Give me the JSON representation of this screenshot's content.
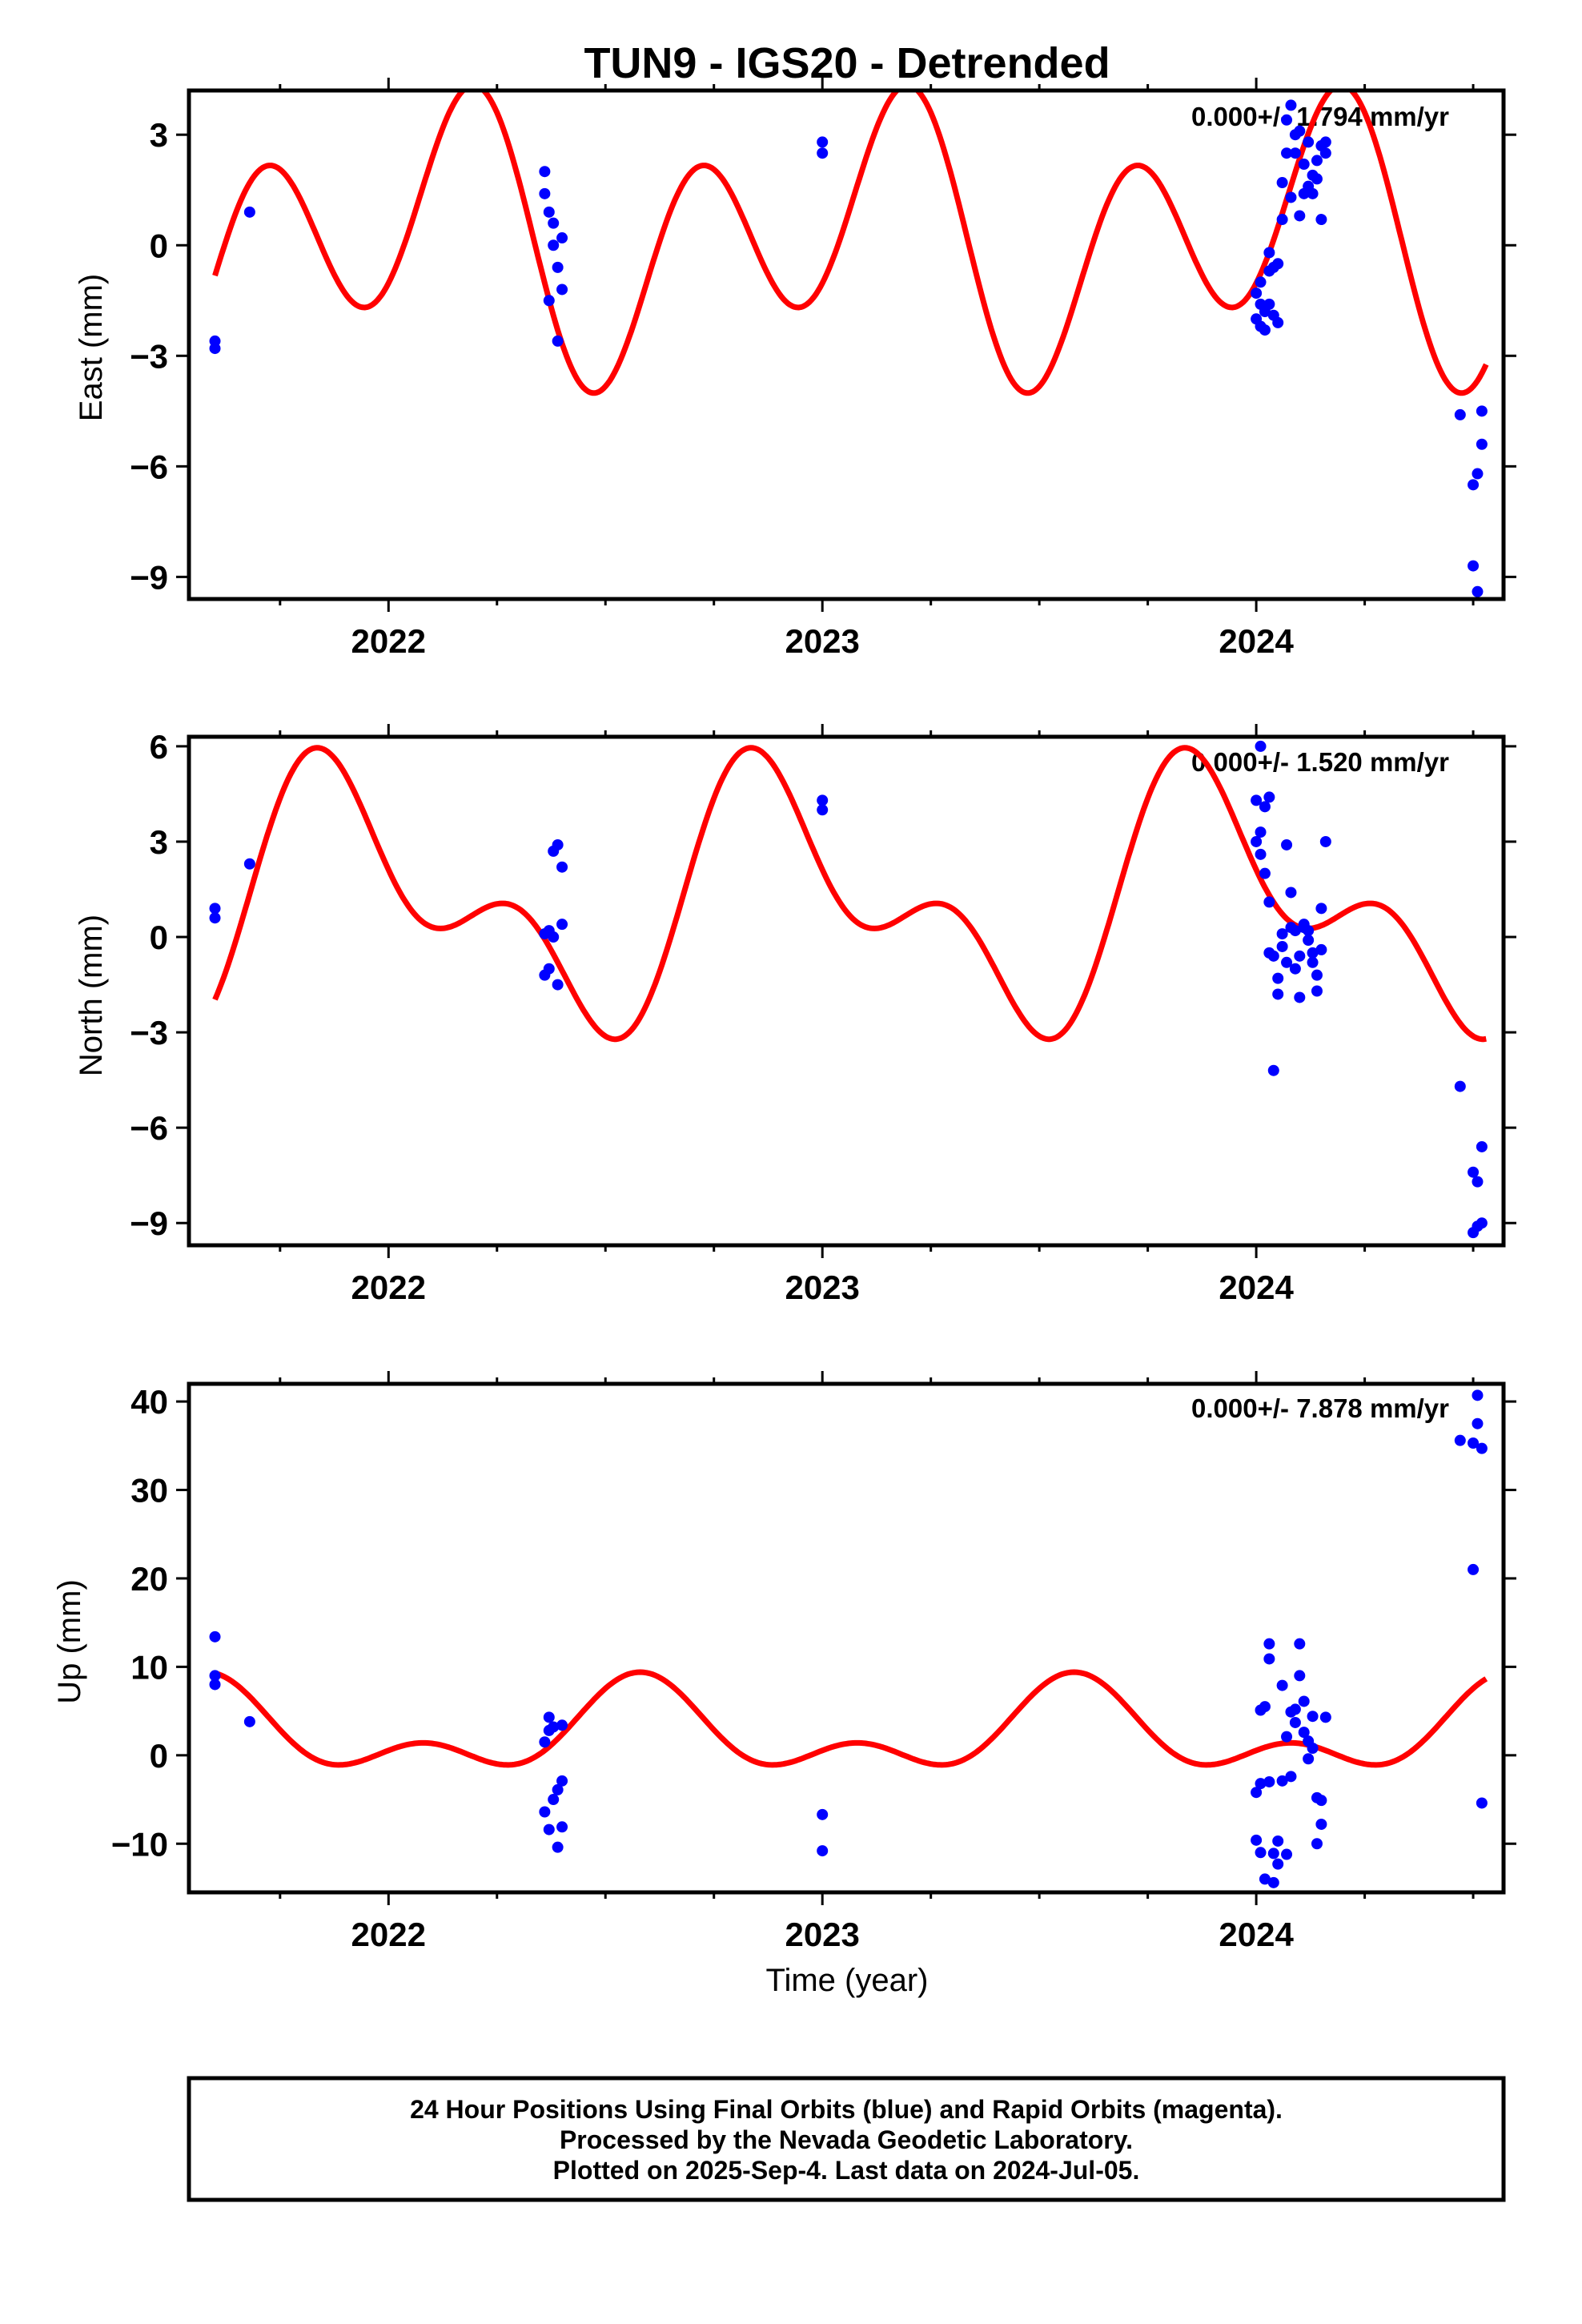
{
  "title": "TUN9 - IGS20 - Detrended",
  "xlabel": "Time (year)",
  "footer": {
    "line1": "24 Hour Positions Using Final Orbits (blue) and Rapid Orbits (magenta).",
    "line2": "Processed by the Nevada Geodetic Laboratory.",
    "line3": "Plotted on 2025-Sep-4. Last data on 2024-Jul-05."
  },
  "colors": {
    "points": "#0000ff",
    "model": "#ff0000",
    "frame": "#000000"
  },
  "chart_data": [
    {
      "type": "scatter",
      "ylabel": "East (mm)",
      "rate": "0.000+/- 1.794 mm/yr",
      "xlim": [
        2021.54,
        2024.57
      ],
      "ylim": [
        -9.6,
        4.2
      ],
      "xticks": [
        "2022",
        "2023",
        "2024"
      ],
      "yticks": [
        "3",
        "0",
        "−3",
        "−6",
        "−9"
      ],
      "ytick_values": [
        3,
        0,
        -3,
        -6,
        -9
      ],
      "model": {
        "mean": 0.2,
        "annual_amp": 1.6,
        "annual_phase": 2022.08,
        "semi_amp": 3.0,
        "semi_phase": 2022.21
      },
      "series": [
        {
          "x": [
            2021.6,
            2021.6,
            2021.68,
            2022.36,
            2022.36,
            2022.37,
            2022.37,
            2022.38,
            2022.38,
            2022.39,
            2022.39,
            2022.4,
            2022.4,
            2023.0,
            2023.0,
            2024.0,
            2024.0,
            2024.01,
            2024.01,
            2024.01,
            2024.02,
            2024.02,
            2024.03,
            2024.03,
            2024.03,
            2024.04,
            2024.04,
            2024.05,
            2024.05,
            2024.06,
            2024.06,
            2024.07,
            2024.07,
            2024.08,
            2024.08,
            2024.09,
            2024.09,
            2024.1,
            2024.1,
            2024.11,
            2024.11,
            2024.12,
            2024.12,
            2024.13,
            2024.13,
            2024.14,
            2024.14,
            2024.15,
            2024.15,
            2024.16,
            2024.16,
            2024.47,
            2024.5,
            2024.5,
            2024.51,
            2024.51,
            2024.52,
            2024.52
          ],
          "y": [
            -2.6,
            -2.8,
            0.9,
            2.0,
            1.4,
            0.9,
            -1.5,
            0.6,
            0.0,
            -0.6,
            -2.6,
            0.2,
            -1.2,
            2.8,
            2.5,
            -2.0,
            -1.3,
            -1.6,
            -2.2,
            -1.0,
            -1.8,
            -2.3,
            -0.7,
            -1.6,
            -0.2,
            -1.9,
            -0.6,
            -2.1,
            -0.5,
            1.7,
            0.7,
            3.4,
            2.5,
            3.8,
            1.3,
            3.0,
            2.5,
            3.1,
            0.8,
            2.2,
            1.4,
            1.6,
            2.8,
            1.4,
            1.9,
            1.8,
            2.3,
            0.7,
            2.7,
            2.5,
            2.8,
            -4.6,
            -6.5,
            -8.7,
            -6.2,
            -9.4,
            -5.4,
            -4.5
          ]
        }
      ]
    },
    {
      "type": "scatter",
      "ylabel": "North (mm)",
      "rate": "0.000+/- 1.520 mm/yr",
      "xlim": [
        2021.54,
        2024.57
      ],
      "ylim": [
        -9.7,
        6.3
      ],
      "xticks": [
        "2022",
        "2023",
        "2024"
      ],
      "yticks": [
        "6",
        "3",
        "0",
        "−3",
        "−6",
        "−9"
      ],
      "ytick_values": [
        6,
        3,
        0,
        -3,
        -6,
        -9
      ],
      "model": {
        "mean": 1.1,
        "annual_amp": 3.1,
        "annual_phase": 2021.91,
        "semi_amp": 2.2,
        "semi_phase": 2021.81
      },
      "series": [
        {
          "x": [
            2021.6,
            2021.6,
            2021.68,
            2022.36,
            2022.36,
            2022.37,
            2022.37,
            2022.38,
            2022.38,
            2022.39,
            2022.39,
            2022.4,
            2022.4,
            2023.0,
            2023.0,
            2024.0,
            2024.0,
            2024.01,
            2024.01,
            2024.01,
            2024.02,
            2024.02,
            2024.03,
            2024.03,
            2024.03,
            2024.04,
            2024.04,
            2024.05,
            2024.05,
            2024.06,
            2024.06,
            2024.07,
            2024.07,
            2024.08,
            2024.08,
            2024.09,
            2024.09,
            2024.1,
            2024.1,
            2024.11,
            2024.11,
            2024.12,
            2024.12,
            2024.13,
            2024.13,
            2024.14,
            2024.14,
            2024.15,
            2024.15,
            2024.16,
            2024.47,
            2024.5,
            2024.5,
            2024.51,
            2024.51,
            2024.52,
            2024.52
          ],
          "y": [
            0.9,
            0.6,
            2.3,
            -1.2,
            0.1,
            -1.0,
            0.2,
            2.7,
            0.0,
            -1.5,
            2.9,
            2.2,
            0.4,
            4.3,
            4.0,
            4.3,
            3.0,
            2.6,
            6.0,
            3.3,
            4.1,
            2.0,
            -0.5,
            4.4,
            1.1,
            -4.2,
            -0.6,
            -1.8,
            -1.3,
            0.1,
            -0.3,
            2.9,
            -0.8,
            1.4,
            0.3,
            -1.0,
            0.2,
            -0.6,
            -1.9,
            0.4,
            0.3,
            0.2,
            -0.1,
            -0.5,
            -0.8,
            -1.2,
            -1.7,
            -0.4,
            0.9,
            3.0,
            -4.7,
            -7.4,
            -9.3,
            -7.7,
            -9.1,
            -6.6,
            -9.0
          ]
        }
      ]
    },
    {
      "type": "scatter",
      "ylabel": "Up (mm)",
      "rate": "0.000+/- 7.878 mm/yr",
      "xlim": [
        2021.54,
        2024.57
      ],
      "ylim": [
        -15.5,
        42
      ],
      "xticks": [
        "2022",
        "2023",
        "2024"
      ],
      "yticks": [
        "40",
        "30",
        "20",
        "10",
        "0",
        "−10"
      ],
      "ytick_values": [
        40,
        30,
        20,
        10,
        0,
        -10
      ],
      "model": {
        "mean": 2.5,
        "annual_amp": 4.0,
        "annual_phase": 2021.58,
        "semi_amp": 2.9,
        "semi_phase": 2021.58
      },
      "series": [
        {
          "x": [
            2021.6,
            2021.6,
            2021.6,
            2021.68,
            2022.36,
            2022.36,
            2022.37,
            2022.37,
            2022.37,
            2022.38,
            2022.38,
            2022.39,
            2022.39,
            2022.4,
            2022.4,
            2022.4,
            2023.0,
            2023.0,
            2024.0,
            2024.0,
            2024.01,
            2024.01,
            2024.01,
            2024.02,
            2024.02,
            2024.03,
            2024.03,
            2024.03,
            2024.04,
            2024.04,
            2024.05,
            2024.05,
            2024.06,
            2024.06,
            2024.07,
            2024.07,
            2024.08,
            2024.08,
            2024.09,
            2024.09,
            2024.1,
            2024.1,
            2024.11,
            2024.11,
            2024.12,
            2024.12,
            2024.13,
            2024.13,
            2024.14,
            2024.14,
            2024.15,
            2024.15,
            2024.16,
            2024.47,
            2024.5,
            2024.5,
            2024.51,
            2024.51,
            2024.52,
            2024.52
          ],
          "y": [
            13.4,
            9.0,
            8.0,
            3.8,
            -6.4,
            1.5,
            4.3,
            -8.4,
            2.8,
            -5.0,
            3.2,
            -3.9,
            -10.4,
            -8.1,
            -2.9,
            3.4,
            -6.7,
            -10.8,
            -4.2,
            -9.6,
            -11.0,
            -3.2,
            5.1,
            -14.0,
            5.5,
            -3.0,
            10.9,
            12.6,
            -11.1,
            -14.4,
            -9.7,
            -12.3,
            7.9,
            -2.9,
            -11.2,
            2.1,
            -2.4,
            4.9,
            3.7,
            5.2,
            9.0,
            12.6,
            6.1,
            2.6,
            1.6,
            -0.4,
            4.4,
            0.8,
            -4.8,
            -10.0,
            -7.8,
            -5.1,
            4.3,
            35.6,
            35.3,
            21.0,
            40.7,
            37.5,
            34.7,
            -5.4
          ]
        }
      ]
    }
  ]
}
